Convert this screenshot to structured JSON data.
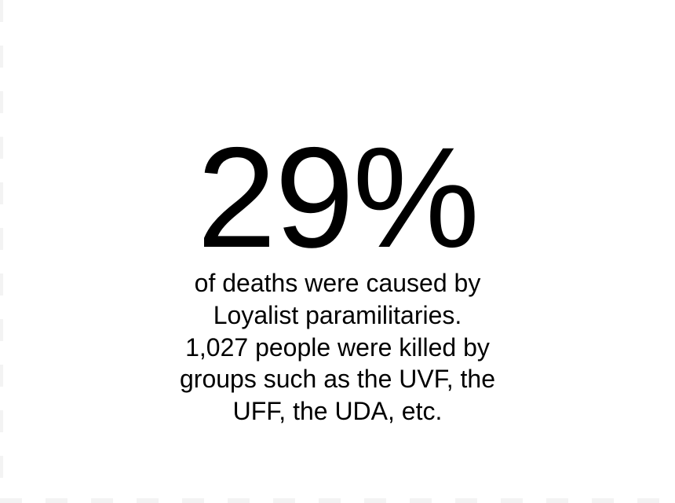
{
  "stat": {
    "value": "29%"
  },
  "caption": {
    "lines": [
      "of deaths were caused by",
      "Loyalist paramilitaries.",
      "1,027 people were killed by",
      "groups such as the UVF, the",
      "UFF, the UDA, etc."
    ]
  }
}
